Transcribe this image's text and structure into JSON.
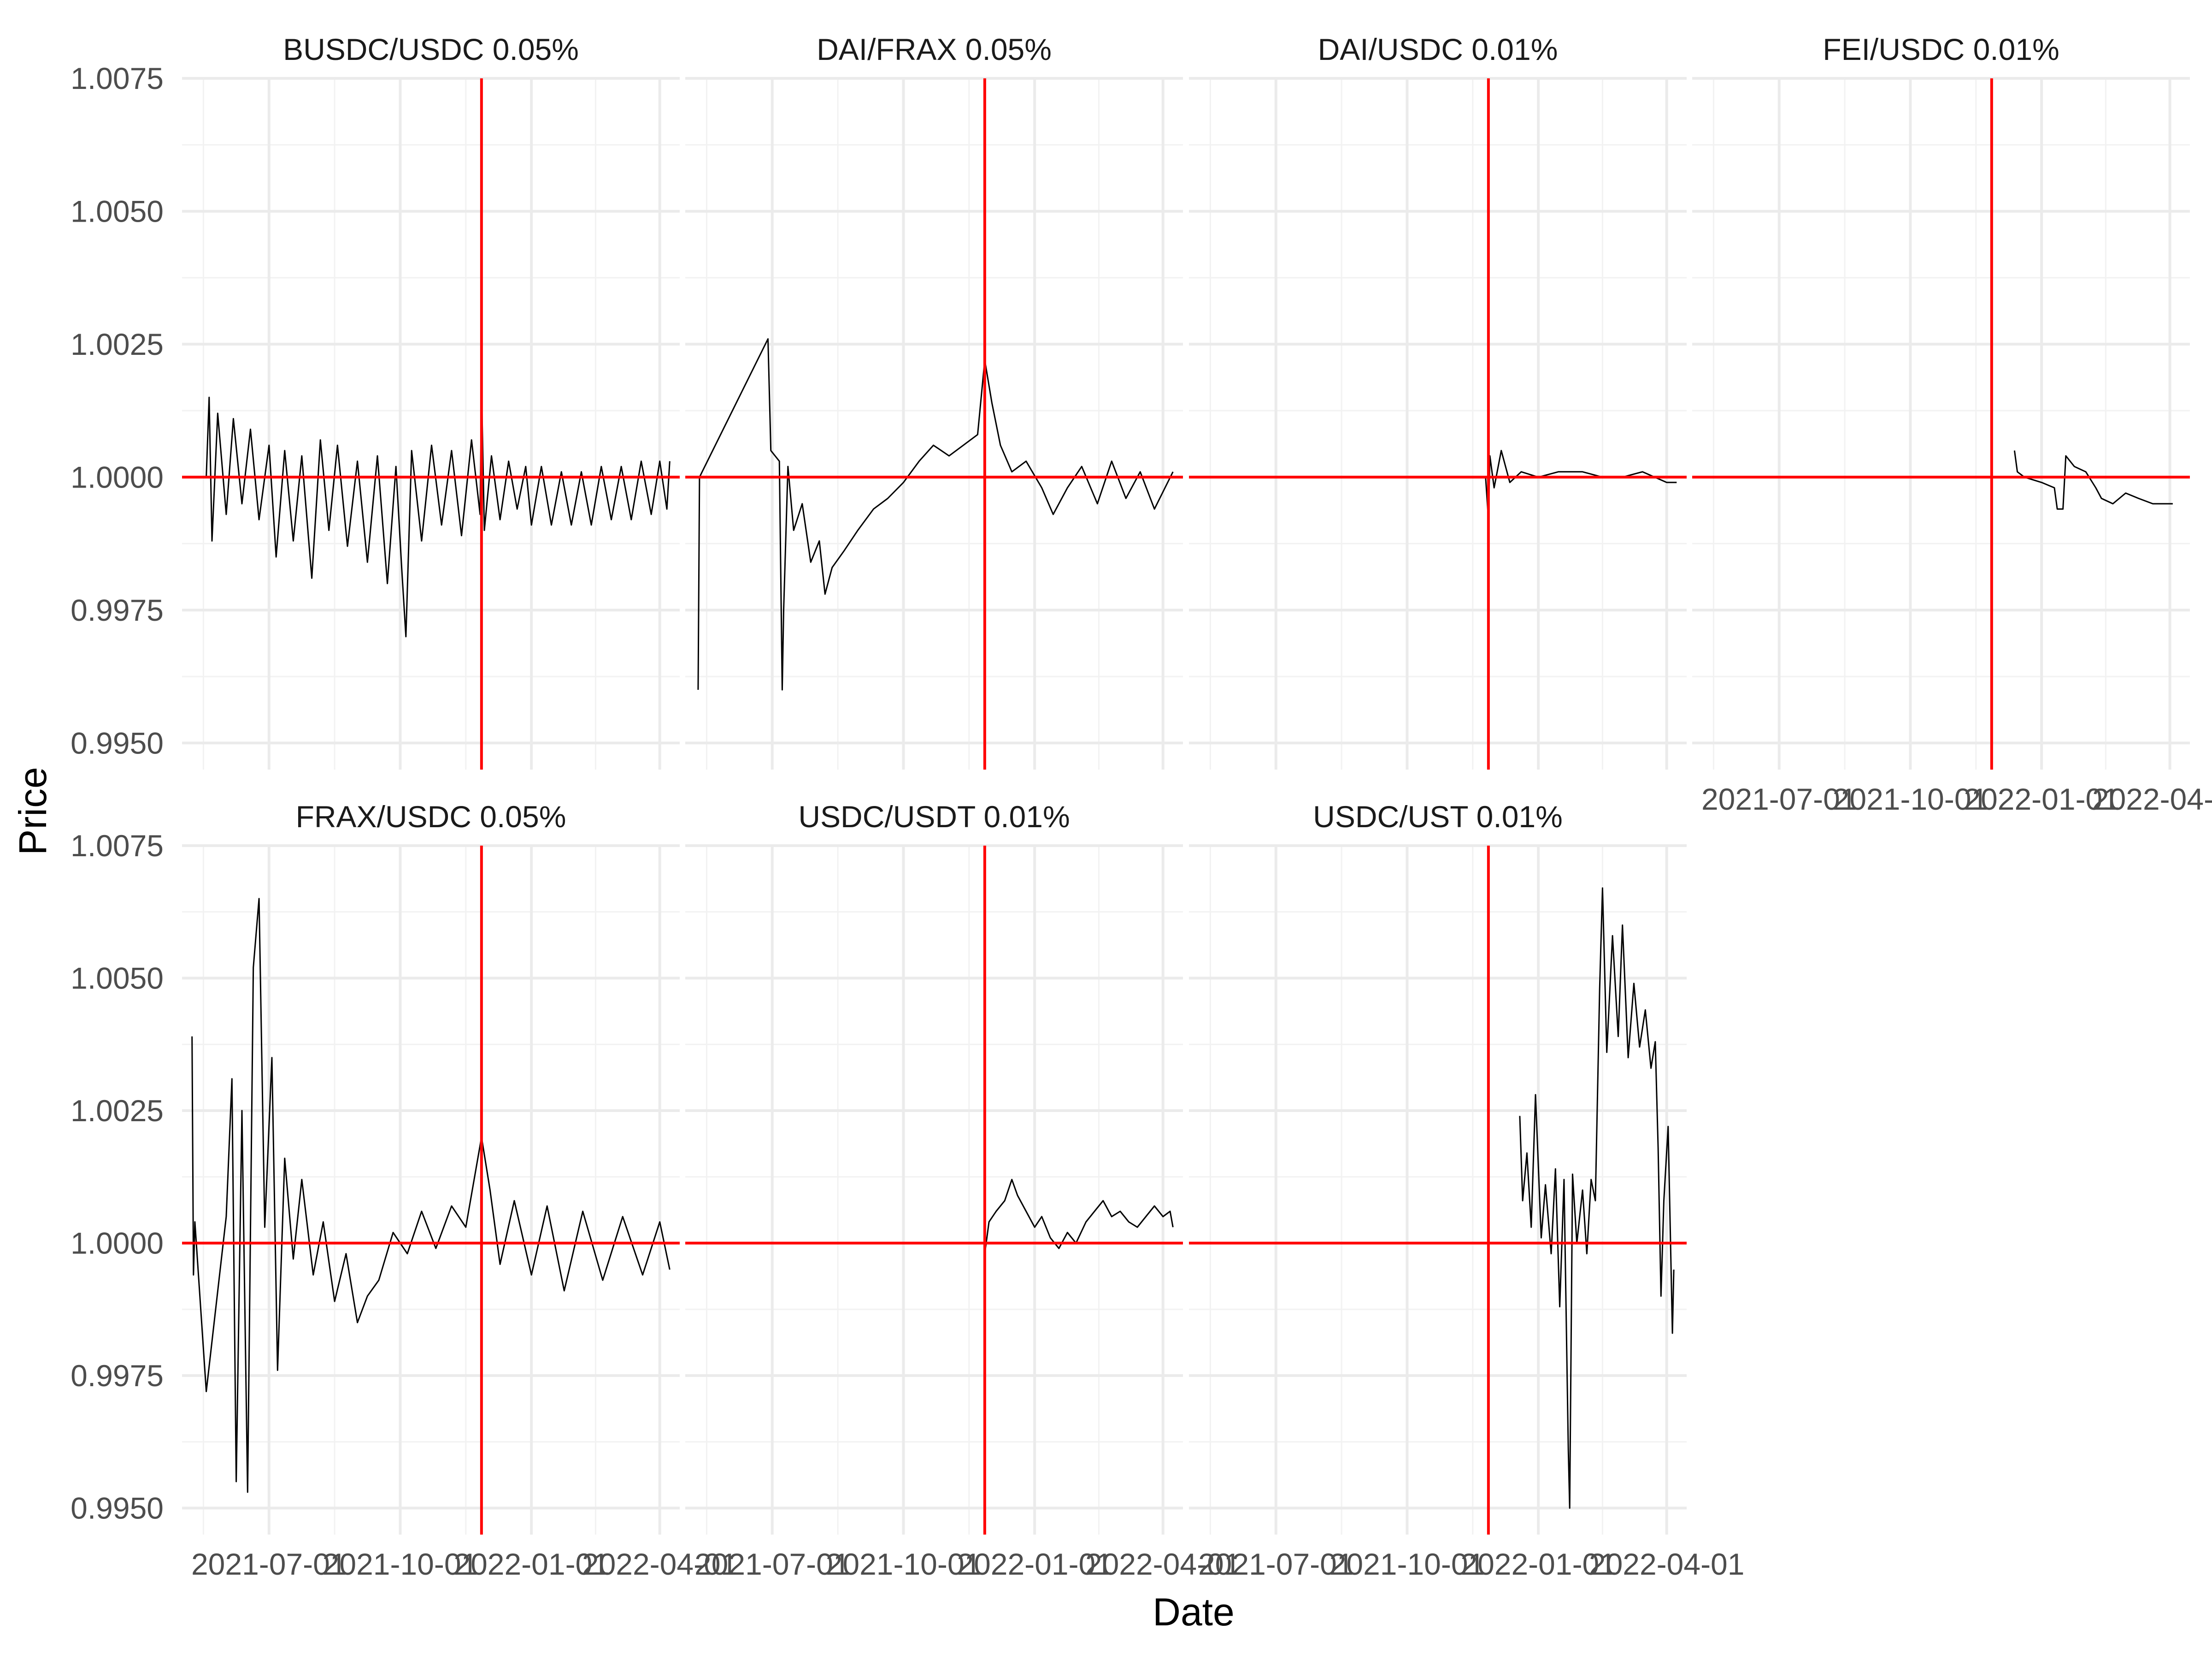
{
  "chart_data": {
    "type": "line",
    "xlabel": "Date",
    "ylabel": "Price",
    "ylim": [
      0.9945,
      1.0075
    ],
    "yticks": [
      "0.9950",
      "0.9975",
      "1.0000",
      "1.0025",
      "1.0050",
      "1.0075"
    ],
    "y_tick_values": [
      0.995,
      0.9975,
      1.0,
      1.0025,
      1.005,
      1.0075
    ],
    "xticks": [
      "2021-07-01",
      "2021-10-01",
      "2022-01-01",
      "2022-04-01"
    ],
    "x_range": [
      "2021-05-01",
      "2022-04-15"
    ],
    "reference_date": "2021-11-27",
    "reference_price": 1.0,
    "reference_color": "#ff0000",
    "series_color": "#000000",
    "grid": true,
    "legend": "none",
    "panels": [
      {
        "title": "BUSDC/USDC 0.05%",
        "series": [
          {
            "x": "2021-05-18",
            "y": 1.0
          },
          {
            "x": "2021-05-20",
            "y": 1.0015
          },
          {
            "x": "2021-05-22",
            "y": 0.9988
          },
          {
            "x": "2021-05-26",
            "y": 1.0012
          },
          {
            "x": "2021-06-01",
            "y": 0.9993
          },
          {
            "x": "2021-06-06",
            "y": 1.0011
          },
          {
            "x": "2021-06-12",
            "y": 0.9995
          },
          {
            "x": "2021-06-18",
            "y": 1.0009
          },
          {
            "x": "2021-06-24",
            "y": 0.9992
          },
          {
            "x": "2021-07-01",
            "y": 1.0006
          },
          {
            "x": "2021-07-06",
            "y": 0.9985
          },
          {
            "x": "2021-07-12",
            "y": 1.0005
          },
          {
            "x": "2021-07-18",
            "y": 0.9988
          },
          {
            "x": "2021-07-24",
            "y": 1.0004
          },
          {
            "x": "2021-07-31",
            "y": 0.9981
          },
          {
            "x": "2021-08-06",
            "y": 1.0007
          },
          {
            "x": "2021-08-12",
            "y": 0.999
          },
          {
            "x": "2021-08-18",
            "y": 1.0006
          },
          {
            "x": "2021-08-25",
            "y": 0.9987
          },
          {
            "x": "2021-09-01",
            "y": 1.0003
          },
          {
            "x": "2021-09-08",
            "y": 0.9984
          },
          {
            "x": "2021-09-15",
            "y": 1.0004
          },
          {
            "x": "2021-09-22",
            "y": 0.998
          },
          {
            "x": "2021-09-28",
            "y": 1.0002
          },
          {
            "x": "2021-10-02",
            "y": 0.9983
          },
          {
            "x": "2021-10-05",
            "y": 0.997
          },
          {
            "x": "2021-10-09",
            "y": 1.0005
          },
          {
            "x": "2021-10-16",
            "y": 0.9988
          },
          {
            "x": "2021-10-23",
            "y": 1.0006
          },
          {
            "x": "2021-10-30",
            "y": 0.9991
          },
          {
            "x": "2021-11-06",
            "y": 1.0005
          },
          {
            "x": "2021-11-13",
            "y": 0.9989
          },
          {
            "x": "2021-11-20",
            "y": 1.0007
          },
          {
            "x": "2021-11-26",
            "y": 0.9993
          },
          {
            "x": "2021-11-27",
            "y": 1.0017
          },
          {
            "x": "2021-11-29",
            "y": 0.999
          },
          {
            "x": "2021-12-04",
            "y": 1.0004
          },
          {
            "x": "2021-12-10",
            "y": 0.9992
          },
          {
            "x": "2021-12-16",
            "y": 1.0003
          },
          {
            "x": "2021-12-22",
            "y": 0.9994
          },
          {
            "x": "2021-12-28",
            "y": 1.0002
          },
          {
            "x": "2022-01-01",
            "y": 0.9991
          },
          {
            "x": "2022-01-08",
            "y": 1.0002
          },
          {
            "x": "2022-01-15",
            "y": 0.9991
          },
          {
            "x": "2022-01-22",
            "y": 1.0001
          },
          {
            "x": "2022-01-29",
            "y": 0.9991
          },
          {
            "x": "2022-02-05",
            "y": 1.0001
          },
          {
            "x": "2022-02-12",
            "y": 0.9991
          },
          {
            "x": "2022-02-19",
            "y": 1.0002
          },
          {
            "x": "2022-02-26",
            "y": 0.9992
          },
          {
            "x": "2022-03-05",
            "y": 1.0002
          },
          {
            "x": "2022-03-12",
            "y": 0.9992
          },
          {
            "x": "2022-03-19",
            "y": 1.0003
          },
          {
            "x": "2022-03-26",
            "y": 0.9993
          },
          {
            "x": "2022-04-01",
            "y": 1.0003
          },
          {
            "x": "2022-04-06",
            "y": 0.9994
          },
          {
            "x": "2022-04-08",
            "y": 1.0003
          }
        ]
      },
      {
        "title": "DAI/FRAX 0.05%",
        "series": [
          {
            "x": "2021-05-10",
            "y": 0.996
          },
          {
            "x": "2021-05-11",
            "y": 1.0
          },
          {
            "x": "2021-06-28",
            "y": 1.0026
          },
          {
            "x": "2021-06-30",
            "y": 1.0005
          },
          {
            "x": "2021-07-06",
            "y": 1.0003
          },
          {
            "x": "2021-07-08",
            "y": 0.996
          },
          {
            "x": "2021-07-09",
            "y": 0.9975
          },
          {
            "x": "2021-07-12",
            "y": 1.0002
          },
          {
            "x": "2021-07-16",
            "y": 0.999
          },
          {
            "x": "2021-07-22",
            "y": 0.9995
          },
          {
            "x": "2021-07-28",
            "y": 0.9984
          },
          {
            "x": "2021-08-03",
            "y": 0.9988
          },
          {
            "x": "2021-08-07",
            "y": 0.9978
          },
          {
            "x": "2021-08-12",
            "y": 0.9983
          },
          {
            "x": "2021-08-20",
            "y": 0.9986
          },
          {
            "x": "2021-08-30",
            "y": 0.999
          },
          {
            "x": "2021-09-10",
            "y": 0.9994
          },
          {
            "x": "2021-09-20",
            "y": 0.9996
          },
          {
            "x": "2021-10-01",
            "y": 0.9999
          },
          {
            "x": "2021-10-12",
            "y": 1.0003
          },
          {
            "x": "2021-10-22",
            "y": 1.0006
          },
          {
            "x": "2021-11-02",
            "y": 1.0004
          },
          {
            "x": "2021-11-12",
            "y": 1.0006
          },
          {
            "x": "2021-11-22",
            "y": 1.0008
          },
          {
            "x": "2021-11-27",
            "y": 1.0022
          },
          {
            "x": "2021-12-02",
            "y": 1.0014
          },
          {
            "x": "2021-12-08",
            "y": 1.0006
          },
          {
            "x": "2021-12-16",
            "y": 1.0001
          },
          {
            "x": "2021-12-26",
            "y": 1.0003
          },
          {
            "x": "2022-01-06",
            "y": 0.9998
          },
          {
            "x": "2022-01-14",
            "y": 0.9993
          },
          {
            "x": "2022-01-24",
            "y": 0.9998
          },
          {
            "x": "2022-02-03",
            "y": 1.0002
          },
          {
            "x": "2022-02-14",
            "y": 0.9995
          },
          {
            "x": "2022-02-24",
            "y": 1.0003
          },
          {
            "x": "2022-03-06",
            "y": 0.9996
          },
          {
            "x": "2022-03-16",
            "y": 1.0001
          },
          {
            "x": "2022-03-26",
            "y": 0.9994
          },
          {
            "x": "2022-04-08",
            "y": 1.0001
          }
        ]
      },
      {
        "title": "DAI/USDC 0.01%",
        "series": [
          {
            "x": "2021-11-25",
            "y": 1.0
          },
          {
            "x": "2021-11-27",
            "y": 0.9992
          },
          {
            "x": "2021-11-28",
            "y": 1.0004
          },
          {
            "x": "2021-12-01",
            "y": 0.9998
          },
          {
            "x": "2021-12-06",
            "y": 1.0005
          },
          {
            "x": "2021-12-12",
            "y": 0.9999
          },
          {
            "x": "2021-12-20",
            "y": 1.0001
          },
          {
            "x": "2022-01-01",
            "y": 1.0
          },
          {
            "x": "2022-01-15",
            "y": 1.0001
          },
          {
            "x": "2022-02-01",
            "y": 1.0001
          },
          {
            "x": "2022-02-15",
            "y": 1.0
          },
          {
            "x": "2022-03-01",
            "y": 1.0
          },
          {
            "x": "2022-03-15",
            "y": 1.0001
          },
          {
            "x": "2022-04-01",
            "y": 0.9999
          },
          {
            "x": "2022-04-08",
            "y": 0.9999
          }
        ]
      },
      {
        "title": "FEI/USDC 0.01%",
        "series": [
          {
            "x": "2021-12-13",
            "y": 1.0005
          },
          {
            "x": "2021-12-15",
            "y": 1.0001
          },
          {
            "x": "2021-12-20",
            "y": 1.0
          },
          {
            "x": "2022-01-01",
            "y": 0.9999
          },
          {
            "x": "2022-01-10",
            "y": 0.9998
          },
          {
            "x": "2022-01-12",
            "y": 0.9994
          },
          {
            "x": "2022-01-16",
            "y": 0.9994
          },
          {
            "x": "2022-01-18",
            "y": 1.0004
          },
          {
            "x": "2022-01-24",
            "y": 1.0002
          },
          {
            "x": "2022-02-01",
            "y": 1.0001
          },
          {
            "x": "2022-02-08",
            "y": 0.9998
          },
          {
            "x": "2022-02-12",
            "y": 0.9996
          },
          {
            "x": "2022-02-20",
            "y": 0.9995
          },
          {
            "x": "2022-03-01",
            "y": 0.9997
          },
          {
            "x": "2022-03-10",
            "y": 0.9996
          },
          {
            "x": "2022-03-20",
            "y": 0.9995
          },
          {
            "x": "2022-04-01",
            "y": 0.9995
          },
          {
            "x": "2022-04-03",
            "y": 0.9995
          }
        ]
      },
      {
        "title": "FRAX/USDC 0.05%",
        "series": [
          {
            "x": "2021-05-08",
            "y": 1.0039
          },
          {
            "x": "2021-05-09",
            "y": 0.9994
          },
          {
            "x": "2021-05-10",
            "y": 1.0004
          },
          {
            "x": "2021-05-18",
            "y": 0.9972
          },
          {
            "x": "2021-06-01",
            "y": 1.0005
          },
          {
            "x": "2021-06-05",
            "y": 1.0031
          },
          {
            "x": "2021-06-08",
            "y": 0.9955
          },
          {
            "x": "2021-06-12",
            "y": 1.0025
          },
          {
            "x": "2021-06-16",
            "y": 0.9953
          },
          {
            "x": "2021-06-20",
            "y": 1.0052
          },
          {
            "x": "2021-06-24",
            "y": 1.0065
          },
          {
            "x": "2021-06-28",
            "y": 1.0003
          },
          {
            "x": "2021-07-03",
            "y": 1.0035
          },
          {
            "x": "2021-07-07",
            "y": 0.9976
          },
          {
            "x": "2021-07-12",
            "y": 1.0016
          },
          {
            "x": "2021-07-18",
            "y": 0.9997
          },
          {
            "x": "2021-07-24",
            "y": 1.0012
          },
          {
            "x": "2021-08-01",
            "y": 0.9994
          },
          {
            "x": "2021-08-08",
            "y": 1.0004
          },
          {
            "x": "2021-08-16",
            "y": 0.9989
          },
          {
            "x": "2021-08-24",
            "y": 0.9998
          },
          {
            "x": "2021-09-01",
            "y": 0.9985
          },
          {
            "x": "2021-09-08",
            "y": 0.999
          },
          {
            "x": "2021-09-16",
            "y": 0.9993
          },
          {
            "x": "2021-09-26",
            "y": 1.0002
          },
          {
            "x": "2021-10-06",
            "y": 0.9998
          },
          {
            "x": "2021-10-16",
            "y": 1.0006
          },
          {
            "x": "2021-10-26",
            "y": 0.9999
          },
          {
            "x": "2021-11-06",
            "y": 1.0007
          },
          {
            "x": "2021-11-16",
            "y": 1.0003
          },
          {
            "x": "2021-11-27",
            "y": 1.002
          },
          {
            "x": "2021-12-03",
            "y": 1.001
          },
          {
            "x": "2021-12-10",
            "y": 0.9996
          },
          {
            "x": "2021-12-20",
            "y": 1.0008
          },
          {
            "x": "2022-01-01",
            "y": 0.9994
          },
          {
            "x": "2022-01-12",
            "y": 1.0007
          },
          {
            "x": "2022-01-24",
            "y": 0.9991
          },
          {
            "x": "2022-02-06",
            "y": 1.0006
          },
          {
            "x": "2022-02-20",
            "y": 0.9993
          },
          {
            "x": "2022-03-06",
            "y": 1.0005
          },
          {
            "x": "2022-03-20",
            "y": 0.9994
          },
          {
            "x": "2022-04-01",
            "y": 1.0004
          },
          {
            "x": "2022-04-08",
            "y": 0.9995
          }
        ]
      },
      {
        "title": "USDC/USDT 0.01%",
        "series": [
          {
            "x": "2021-11-27",
            "y": 0.9998
          },
          {
            "x": "2021-11-30",
            "y": 1.0004
          },
          {
            "x": "2021-12-05",
            "y": 1.0006
          },
          {
            "x": "2021-12-11",
            "y": 1.0008
          },
          {
            "x": "2021-12-16",
            "y": 1.0012
          },
          {
            "x": "2021-12-20",
            "y": 1.0009
          },
          {
            "x": "2021-12-26",
            "y": 1.0006
          },
          {
            "x": "2022-01-01",
            "y": 1.0003
          },
          {
            "x": "2022-01-06",
            "y": 1.0005
          },
          {
            "x": "2022-01-12",
            "y": 1.0001
          },
          {
            "x": "2022-01-18",
            "y": 0.9999
          },
          {
            "x": "2022-01-24",
            "y": 1.0002
          },
          {
            "x": "2022-01-30",
            "y": 1.0
          },
          {
            "x": "2022-02-06",
            "y": 1.0004
          },
          {
            "x": "2022-02-12",
            "y": 1.0006
          },
          {
            "x": "2022-02-18",
            "y": 1.0008
          },
          {
            "x": "2022-02-24",
            "y": 1.0005
          },
          {
            "x": "2022-03-02",
            "y": 1.0006
          },
          {
            "x": "2022-03-08",
            "y": 1.0004
          },
          {
            "x": "2022-03-14",
            "y": 1.0003
          },
          {
            "x": "2022-03-20",
            "y": 1.0005
          },
          {
            "x": "2022-03-26",
            "y": 1.0007
          },
          {
            "x": "2022-04-01",
            "y": 1.0005
          },
          {
            "x": "2022-04-06",
            "y": 1.0006
          },
          {
            "x": "2022-04-08",
            "y": 1.0003
          }
        ]
      },
      {
        "title": "USDC/UST 0.01%",
        "series": [
          {
            "x": "2021-12-19",
            "y": 1.0024
          },
          {
            "x": "2021-12-21",
            "y": 1.0008
          },
          {
            "x": "2021-12-24",
            "y": 1.0017
          },
          {
            "x": "2021-12-27",
            "y": 1.0003
          },
          {
            "x": "2021-12-30",
            "y": 1.0028
          },
          {
            "x": "2022-01-03",
            "y": 1.0001
          },
          {
            "x": "2022-01-06",
            "y": 1.0011
          },
          {
            "x": "2022-01-10",
            "y": 0.9998
          },
          {
            "x": "2022-01-13",
            "y": 1.0014
          },
          {
            "x": "2022-01-16",
            "y": 0.9988
          },
          {
            "x": "2022-01-19",
            "y": 1.0012
          },
          {
            "x": "2022-01-22",
            "y": 0.9961
          },
          {
            "x": "2022-01-23",
            "y": 0.995
          },
          {
            "x": "2022-01-25",
            "y": 1.0013
          },
          {
            "x": "2022-01-28",
            "y": 1.0
          },
          {
            "x": "2022-02-01",
            "y": 1.001
          },
          {
            "x": "2022-02-04",
            "y": 0.9998
          },
          {
            "x": "2022-02-07",
            "y": 1.0012
          },
          {
            "x": "2022-02-10",
            "y": 1.0008
          },
          {
            "x": "2022-02-13",
            "y": 1.0048
          },
          {
            "x": "2022-02-15",
            "y": 1.0067
          },
          {
            "x": "2022-02-18",
            "y": 1.0036
          },
          {
            "x": "2022-02-22",
            "y": 1.0058
          },
          {
            "x": "2022-02-26",
            "y": 1.0039
          },
          {
            "x": "2022-03-01",
            "y": 1.006
          },
          {
            "x": "2022-03-05",
            "y": 1.0035
          },
          {
            "x": "2022-03-09",
            "y": 1.0049
          },
          {
            "x": "2022-03-13",
            "y": 1.0037
          },
          {
            "x": "2022-03-17",
            "y": 1.0044
          },
          {
            "x": "2022-03-21",
            "y": 1.0033
          },
          {
            "x": "2022-03-24",
            "y": 1.0038
          },
          {
            "x": "2022-03-26",
            "y": 1.0018
          },
          {
            "x": "2022-03-28",
            "y": 0.999
          },
          {
            "x": "2022-03-30",
            "y": 1.0008
          },
          {
            "x": "2022-04-02",
            "y": 1.0022
          },
          {
            "x": "2022-04-05",
            "y": 0.9983
          },
          {
            "x": "2022-04-06",
            "y": 0.9995
          }
        ]
      }
    ]
  }
}
